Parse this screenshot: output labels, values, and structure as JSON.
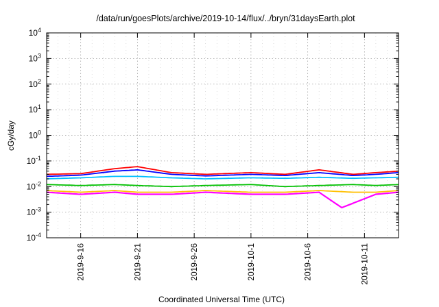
{
  "chart_data": {
    "type": "line",
    "title": "/data/run/goesPlots/archive/2019-10-14/flux/../bryn/31daysEarth.plot",
    "xlabel": "Coordinated Universal Time (UTC)",
    "ylabel": "cGy/day",
    "y_scale": "log",
    "ylim": [
      0.0001,
      10000
    ],
    "xlim": [
      "2019-09-13",
      "2019-10-14"
    ],
    "x_ticks": [
      "2019-9-16",
      "2019-9-21",
      "2019-9-26",
      "2019-10-1",
      "2019-10-6",
      "2019-10-11"
    ],
    "y_ticks": [
      {
        "base": "10",
        "exp": "-4"
      },
      {
        "base": "10",
        "exp": "-3"
      },
      {
        "base": "10",
        "exp": "-2"
      },
      {
        "base": "10",
        "exp": "-1"
      },
      {
        "base": "10",
        "exp": "0"
      },
      {
        "base": "10",
        "exp": "1"
      },
      {
        "base": "10",
        "exp": "2"
      },
      {
        "base": "10",
        "exp": "3"
      },
      {
        "base": "10",
        "exp": "4"
      }
    ],
    "grid": true,
    "series": [
      {
        "color": "#ff0000",
        "x": [
          "2019-09-13",
          "2019-09-16",
          "2019-09-19",
          "2019-09-21",
          "2019-09-24",
          "2019-09-27",
          "2019-10-01",
          "2019-10-04",
          "2019-10-07",
          "2019-10-10",
          "2019-10-12",
          "2019-10-14"
        ],
        "values": [
          0.03,
          0.032,
          0.05,
          0.06,
          0.035,
          0.03,
          0.035,
          0.03,
          0.045,
          0.03,
          0.035,
          0.04
        ]
      },
      {
        "color": "#0000ff",
        "x": [
          "2019-09-13",
          "2019-09-16",
          "2019-09-19",
          "2019-09-21",
          "2019-09-24",
          "2019-09-27",
          "2019-10-01",
          "2019-10-04",
          "2019-10-07",
          "2019-10-10",
          "2019-10-12",
          "2019-10-14"
        ],
        "values": [
          0.025,
          0.028,
          0.04,
          0.045,
          0.03,
          0.026,
          0.03,
          0.027,
          0.035,
          0.027,
          0.03,
          0.035
        ]
      },
      {
        "color": "#00bfff",
        "x": [
          "2019-09-13",
          "2019-09-16",
          "2019-09-19",
          "2019-09-21",
          "2019-09-24",
          "2019-09-27",
          "2019-10-01",
          "2019-10-04",
          "2019-10-07",
          "2019-10-10",
          "2019-10-12",
          "2019-10-14"
        ],
        "values": [
          0.02,
          0.022,
          0.025,
          0.025,
          0.022,
          0.02,
          0.022,
          0.021,
          0.023,
          0.021,
          0.022,
          0.023
        ]
      },
      {
        "color": "#00c000",
        "x": [
          "2019-09-13",
          "2019-09-16",
          "2019-09-19",
          "2019-09-21",
          "2019-09-24",
          "2019-09-27",
          "2019-10-01",
          "2019-10-04",
          "2019-10-07",
          "2019-10-10",
          "2019-10-12",
          "2019-10-14"
        ],
        "values": [
          0.012,
          0.011,
          0.012,
          0.011,
          0.01,
          0.011,
          0.012,
          0.01,
          0.011,
          0.012,
          0.011,
          0.012
        ]
      },
      {
        "color": "#ffbf00",
        "x": [
          "2019-09-13",
          "2019-09-16",
          "2019-09-19",
          "2019-09-21",
          "2019-09-24",
          "2019-09-27",
          "2019-10-01",
          "2019-10-04",
          "2019-10-07",
          "2019-10-10",
          "2019-10-12",
          "2019-10-14"
        ],
        "values": [
          0.007,
          0.006,
          0.007,
          0.006,
          0.006,
          0.007,
          0.006,
          0.006,
          0.007,
          0.006,
          0.006,
          0.007
        ]
      },
      {
        "color": "#ff00ff",
        "x": [
          "2019-09-13",
          "2019-09-16",
          "2019-09-19",
          "2019-09-21",
          "2019-09-24",
          "2019-09-27",
          "2019-10-01",
          "2019-10-04",
          "2019-10-07",
          "2019-10-09",
          "2019-10-12",
          "2019-10-14"
        ],
        "values": [
          0.006,
          0.005,
          0.006,
          0.005,
          0.005,
          0.006,
          0.005,
          0.005,
          0.006,
          0.0015,
          0.005,
          0.006
        ]
      }
    ]
  }
}
